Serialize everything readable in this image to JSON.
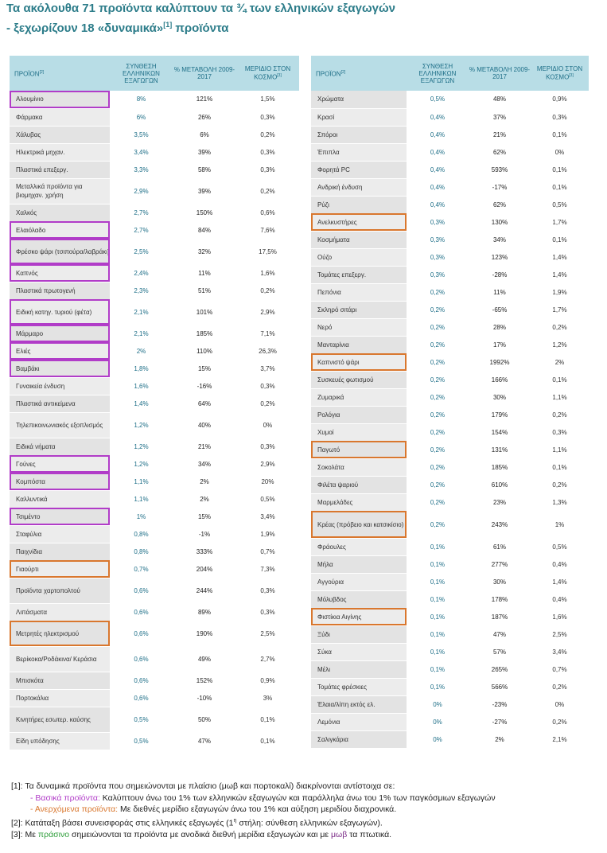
{
  "title": {
    "line1": "Τα ακόλουθα 71 προϊόντα καλύπτουν τα ¾ των ελληνικών εξαγωγών",
    "line2_pre": "- ξεχωρίζουν 18 «δυναμικά»",
    "line2_sup": "[1]",
    "line2_post": " προϊόντα"
  },
  "headers": {
    "product": "ΠΡΟΪΟΝ",
    "product_sup": "[2]",
    "composition": "ΣΥΝΘΕΣΗ ΕΛΛΗΝΙΚΩΝ ΕΞΑΓΩΓΩΝ",
    "change": "% ΜΕΤΑΒΟΛΗ 2009-2017",
    "share": "ΜΕΡΙΔΙΟ ΣΤΟΝ ΚΟΣΜΟ",
    "share_sup": "[3]"
  },
  "left_rows": [
    {
      "name": "Αλουμίνιο",
      "comp": "8%",
      "chg": "121%",
      "share": "1,5%",
      "trend": "up",
      "box": "m",
      "h": 22
    },
    {
      "name": "Φάρμακα",
      "comp": "6%",
      "chg": "26%",
      "share": "0,3%",
      "trend": "down",
      "box": "",
      "h": 22
    },
    {
      "name": "Χάλυβας",
      "comp": "3,5%",
      "chg": "6%",
      "share": "0,2%",
      "trend": "down",
      "box": "",
      "h": 22
    },
    {
      "name": "Ηλεκτρικά μηχαν.",
      "comp": "3,4%",
      "chg": "39%",
      "share": "0,3%",
      "trend": "down",
      "box": "",
      "h": 22
    },
    {
      "name": "Πλαστικά επεξεργ.",
      "comp": "3,3%",
      "chg": "58%",
      "share": "0,3%",
      "trend": "down",
      "box": "",
      "h": 22
    },
    {
      "name": "Μεταλλικά προϊόντα για βιομηχαν. χρήση",
      "comp": "2,9%",
      "chg": "39%",
      "share": "0,2%",
      "trend": "down",
      "box": "",
      "h": 32
    },
    {
      "name": "Χαλκός",
      "comp": "2,7%",
      "chg": "150%",
      "share": "0,6%",
      "trend": "up",
      "box": "",
      "h": 22
    },
    {
      "name": "Ελαιόλαδο",
      "comp": "2,7%",
      "chg": "84%",
      "share": "7,6%",
      "trend": "down",
      "box": "m",
      "h": 22
    },
    {
      "name": "Φρέσκο ψάρι (τσιπούρα/λαβράκι)",
      "comp": "2,5%",
      "chg": "32%",
      "share": "17,5%",
      "trend": "down",
      "box": "m",
      "h": 32
    },
    {
      "name": "Καπνός",
      "comp": "2,4%",
      "chg": "11%",
      "share": "1,6%",
      "trend": "down",
      "box": "m",
      "h": 22
    },
    {
      "name": "Πλαστικά πρωτογενή",
      "comp": "2,3%",
      "chg": "51%",
      "share": "0,2%",
      "trend": "down",
      "box": "",
      "h": 22
    },
    {
      "name": "Ειδική κατηγ. τυριού (φέτα)",
      "comp": "2,1%",
      "chg": "101%",
      "share": "2,9%",
      "trend": "up",
      "box": "m",
      "h": 32
    },
    {
      "name": "Μάρμαρο",
      "comp": "2,1%",
      "chg": "185%",
      "share": "7,1%",
      "trend": "up",
      "box": "m",
      "h": 22
    },
    {
      "name": "Ελιές",
      "comp": "2%",
      "chg": "110%",
      "share": "26,3%",
      "trend": "up",
      "box": "m",
      "h": 22
    },
    {
      "name": "Βαμβάκι",
      "comp": "1,8%",
      "chg": "15%",
      "share": "3,7%",
      "trend": "down",
      "box": "m",
      "h": 22
    },
    {
      "name": "Γυναικεία ένδυση",
      "comp": "1,6%",
      "chg": "-16%",
      "share": "0,3%",
      "trend": "down",
      "box": "",
      "h": 22
    },
    {
      "name": "Πλαστικά αντικείμενα",
      "comp": "1,4%",
      "chg": "64%",
      "share": "0,2%",
      "trend": "down",
      "box": "",
      "h": 22
    },
    {
      "name": "Τηλεπικοινωνιακός εξοπλισμός",
      "comp": "1,2%",
      "chg": "40%",
      "share": "0%",
      "trend": "down",
      "box": "",
      "h": 32
    },
    {
      "name": "Ειδικά νήματα",
      "comp": "1,2%",
      "chg": "21%",
      "share": "0,3%",
      "trend": "down",
      "box": "",
      "h": 22
    },
    {
      "name": "Γούνες",
      "comp": "1,2%",
      "chg": "34%",
      "share": "2,9%",
      "trend": "down",
      "box": "m",
      "h": 22
    },
    {
      "name": "Κομπόστα",
      "comp": "1,1%",
      "chg": "2%",
      "share": "20%",
      "trend": "down",
      "box": "m",
      "h": 22
    },
    {
      "name": "Καλλυντικά",
      "comp": "1,1%",
      "chg": "2%",
      "share": "0,5%",
      "trend": "down",
      "box": "",
      "h": 22
    },
    {
      "name": "Τσιμέντο",
      "comp": "1%",
      "chg": "15%",
      "share": "3,4%",
      "trend": "up",
      "box": "m",
      "h": 22
    },
    {
      "name": "Σταφύλια",
      "comp": "0,8%",
      "chg": "-1%",
      "share": "1,9%",
      "trend": "down",
      "box": "",
      "h": 22
    },
    {
      "name": "Παιχνίδια",
      "comp": "0,8%",
      "chg": "333%",
      "share": "0,7%",
      "trend": "up",
      "box": "",
      "h": 22
    },
    {
      "name": "Γιαούρτι",
      "comp": "0,7%",
      "chg": "204%",
      "share": "7,3%",
      "trend": "up",
      "box": "o",
      "h": 22
    },
    {
      "name": "Προϊόντα χαρτοπολτού",
      "comp": "0,6%",
      "chg": "244%",
      "share": "0,3%",
      "trend": "up",
      "box": "",
      "h": 32
    },
    {
      "name": "Λιπάσματα",
      "comp": "0,6%",
      "chg": "89%",
      "share": "0,3%",
      "trend": "up",
      "box": "",
      "h": 22
    },
    {
      "name": "Μετρητές ηλεκτρισμού",
      "comp": "0,6%",
      "chg": "190%",
      "share": "2,5%",
      "trend": "up",
      "box": "o",
      "h": 32
    },
    {
      "name": "Βερίκοκα/Ροδάκινα/ Κεράσια",
      "comp": "0,6%",
      "chg": "49%",
      "share": "2,7%",
      "trend": "down",
      "box": "",
      "h": 32
    },
    {
      "name": "Μπισκότα",
      "comp": "0,6%",
      "chg": "152%",
      "share": "0,9%",
      "trend": "up",
      "box": "",
      "h": 22
    },
    {
      "name": "Πορτοκάλια",
      "comp": "0,6%",
      "chg": "-10%",
      "share": "3%",
      "trend": "down",
      "box": "",
      "h": 22
    },
    {
      "name": "Κινητήρες εσωτερ. καύσης",
      "comp": "0,5%",
      "chg": "50%",
      "share": "0,1%",
      "trend": "down",
      "box": "",
      "h": 32
    },
    {
      "name": "Είδη υπόδησης",
      "comp": "0,5%",
      "chg": "47%",
      "share": "0,1%",
      "trend": "down",
      "box": "",
      "h": 22
    }
  ],
  "right_rows": [
    {
      "name": "Χρώματα",
      "comp": "0,5%",
      "chg": "48%",
      "share": "0,9%",
      "trend": "down",
      "box": "",
      "h": 22
    },
    {
      "name": "Κρασί",
      "comp": "0,4%",
      "chg": "37%",
      "share": "0,3%",
      "trend": "down",
      "box": "",
      "h": 22
    },
    {
      "name": "Σπόροι",
      "comp": "0,4%",
      "chg": "21%",
      "share": "0,1%",
      "trend": "down",
      "box": "",
      "h": 22
    },
    {
      "name": "Έπιπλα",
      "comp": "0,4%",
      "chg": "62%",
      "share": "0%",
      "trend": "down",
      "box": "",
      "h": 22
    },
    {
      "name": "Φορητά PC",
      "comp": "0,4%",
      "chg": "593%",
      "share": "0,1%",
      "trend": "up",
      "box": "",
      "h": 22
    },
    {
      "name": "Ανδρική ένδυση",
      "comp": "0,4%",
      "chg": "-17%",
      "share": "0,1%",
      "trend": "down",
      "box": "",
      "h": 22
    },
    {
      "name": "Ρύζι",
      "comp": "0,4%",
      "chg": "62%",
      "share": "0,5%",
      "trend": "up",
      "box": "",
      "h": 22
    },
    {
      "name": "Ανελκυστήρες",
      "comp": "0,3%",
      "chg": "130%",
      "share": "1,7%",
      "trend": "up",
      "box": "o",
      "h": 22
    },
    {
      "name": "Κοσμήματα",
      "comp": "0,3%",
      "chg": "34%",
      "share": "0,1%",
      "trend": "down",
      "box": "",
      "h": 22
    },
    {
      "name": "Ούζο",
      "comp": "0,3%",
      "chg": "123%",
      "share": "1,4%",
      "trend": "down",
      "box": "",
      "h": 22
    },
    {
      "name": "Τομάτες επεξεργ.",
      "comp": "0,3%",
      "chg": "-28%",
      "share": "1,4%",
      "trend": "down",
      "box": "",
      "h": 22
    },
    {
      "name": "Πεπόνια",
      "comp": "0,2%",
      "chg": "11%",
      "share": "1,9%",
      "trend": "down",
      "box": "",
      "h": 22
    },
    {
      "name": "Σκληρό σιτάρι",
      "comp": "0,2%",
      "chg": "-65%",
      "share": "1,7%",
      "trend": "down",
      "box": "",
      "h": 22
    },
    {
      "name": "Νερό",
      "comp": "0,2%",
      "chg": "28%",
      "share": "0,2%",
      "trend": "down",
      "box": "",
      "h": 22
    },
    {
      "name": "Μανταρίνια",
      "comp": "0,2%",
      "chg": "17%",
      "share": "1,2%",
      "trend": "down",
      "box": "",
      "h": 22
    },
    {
      "name": "Καπνιστό ψάρι",
      "comp": "0,2%",
      "chg": "1992%",
      "share": "2%",
      "trend": "up",
      "box": "o",
      "h": 22
    },
    {
      "name": "Συσκευές φωτισμού",
      "comp": "0,2%",
      "chg": "166%",
      "share": "0,1%",
      "trend": "down",
      "box": "",
      "h": 22
    },
    {
      "name": "Ζυμαρικά",
      "comp": "0,2%",
      "chg": "30%",
      "share": "1,1%",
      "trend": "down",
      "box": "",
      "h": 22
    },
    {
      "name": "Ρολόγια",
      "comp": "0,2%",
      "chg": "179%",
      "share": "0,2%",
      "trend": "up",
      "box": "",
      "h": 22
    },
    {
      "name": "Χυμοί",
      "comp": "0,2%",
      "chg": "154%",
      "share": "0,3%",
      "trend": "up",
      "box": "",
      "h": 22
    },
    {
      "name": "Παγωτό",
      "comp": "0,2%",
      "chg": "131%",
      "share": "1,1%",
      "trend": "up",
      "box": "o",
      "h": 22
    },
    {
      "name": "Σοκολάτα",
      "comp": "0,2%",
      "chg": "185%",
      "share": "0,1%",
      "trend": "up",
      "box": "",
      "h": 22
    },
    {
      "name": "Φιλέτα ψαριού",
      "comp": "0,2%",
      "chg": "610%",
      "share": "0,2%",
      "trend": "up",
      "box": "",
      "h": 22
    },
    {
      "name": "Μαρμελάδες",
      "comp": "0,2%",
      "chg": "23%",
      "share": "1,3%",
      "trend": "down",
      "box": "",
      "h": 22
    },
    {
      "name": "Κρέας (πρόβειο και κατσικίσιο)",
      "comp": "0,2%",
      "chg": "243%",
      "share": "1%",
      "trend": "up",
      "box": "o",
      "h": 34
    },
    {
      "name": "Φράουλες",
      "comp": "0,1%",
      "chg": "61%",
      "share": "0,5%",
      "trend": "down",
      "box": "",
      "h": 22
    },
    {
      "name": "Μήλα",
      "comp": "0,1%",
      "chg": "277%",
      "share": "0,4%",
      "trend": "up",
      "box": "",
      "h": 22
    },
    {
      "name": "Αγγούρια",
      "comp": "0,1%",
      "chg": "30%",
      "share": "1,4%",
      "trend": "down",
      "box": "",
      "h": 22
    },
    {
      "name": "Μόλυβδος",
      "comp": "0,1%",
      "chg": "178%",
      "share": "0,4%",
      "trend": "up",
      "box": "",
      "h": 22
    },
    {
      "name": "Φιστίκια Αιγίνης",
      "comp": "0,1%",
      "chg": "187%",
      "share": "1,6%",
      "trend": "up",
      "box": "o",
      "h": 22
    },
    {
      "name": "Ξύδι",
      "comp": "0,1%",
      "chg": "47%",
      "share": "2,5%",
      "trend": "down",
      "box": "",
      "h": 22
    },
    {
      "name": "Σύκα",
      "comp": "0,1%",
      "chg": "57%",
      "share": "3,4%",
      "trend": "down",
      "box": "",
      "h": 22
    },
    {
      "name": "Μέλι",
      "comp": "0,1%",
      "chg": "265%",
      "share": "0,7%",
      "trend": "up",
      "box": "",
      "h": 22
    },
    {
      "name": "Τομάτες φρέσκιες",
      "comp": "0,1%",
      "chg": "566%",
      "share": "0,2%",
      "trend": "up",
      "box": "",
      "h": 22
    },
    {
      "name": "Έλαια/λίπη εκτός ελ.",
      "comp": "0%",
      "chg": "-23%",
      "share": "0%",
      "trend": "down",
      "box": "",
      "h": 22
    },
    {
      "name": "Λεμόνια",
      "comp": "0%",
      "chg": "-27%",
      "share": "0,2%",
      "trend": "down",
      "box": "",
      "h": 22
    },
    {
      "name": "Σαλιγκάρια",
      "comp": "0%",
      "chg": "2%",
      "share": "2,1%",
      "trend": "down",
      "box": "",
      "h": 22
    }
  ],
  "notes": {
    "n1": "[1]: Τα δυναμικά προϊόντα που σημειώνονται με πλαίσιο (μωβ και πορτοκαλί) διακρίνονται αντίστοιχα σε:",
    "n1a_label": "- Βασικά προϊόντα:",
    "n1a_text": " Καλύπτουν άνω του 1% των ελληνικών εξαγωγών και παράλληλα άνω του 1% των παγκόσμιων εξαγωγών",
    "n1b_label": "- Ανερχόμενα προϊόντα:",
    "n1b_text": " Με διεθνές μερίδιο εξαγωγών άνω του 1% και αύξηση μεριδίου διαχρονικά.",
    "n2_pre": "[2]: Κατάταξη βάσει συνεισφοράς στις ελληνικές εξαγωγές (1",
    "n2_sup": "η",
    "n2_post": " στήλη: σύνθεση ελληνικών εξαγωγών).",
    "n3_pre": "[3]: Με ",
    "n3_green": "πράσινο",
    "n3_mid": " σημειώνονται τα προϊόντα με ανοδικά διεθνή μερίδια εξαγωγών και με ",
    "n3_purple": "μωβ",
    "n3_post": " τα πτωτικά."
  },
  "colors": {
    "title": "#2d7d8a",
    "header_bg": "#b8dde6",
    "up": "#2e9e3a",
    "down": "#7a2a86",
    "box_basic": "#b13cc8",
    "box_rising": "#d9772e"
  }
}
